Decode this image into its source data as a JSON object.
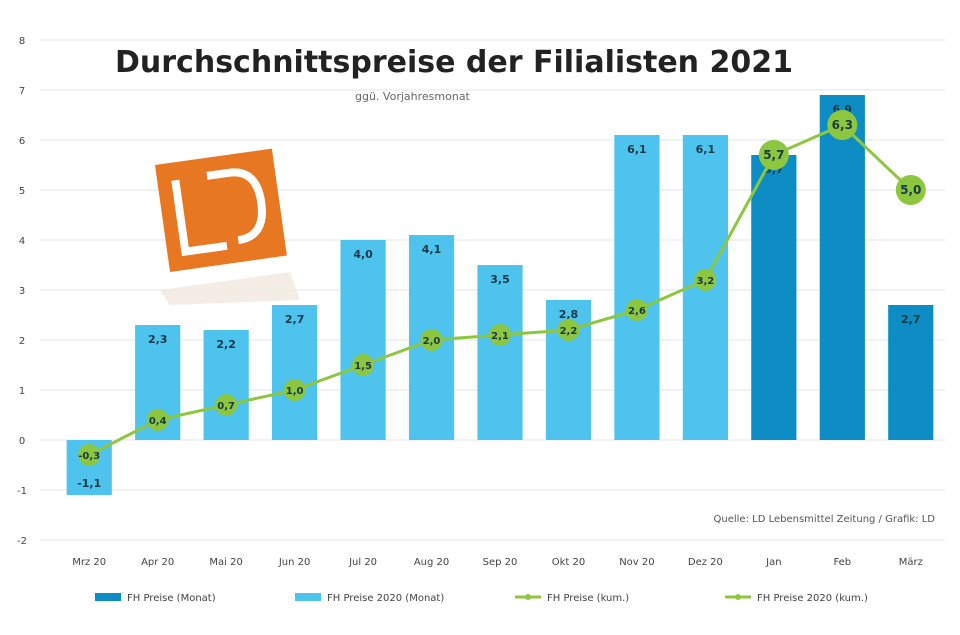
{
  "chart_data": {
    "type": "bar",
    "title": "Durchschnittspreise der Filialisten 2021",
    "subtitle": "ggü. Vorjahresmonat",
    "source": "Quelle: LD Lebensmittel Zeitung / Grafik: LD",
    "categories": [
      "Mrz 20",
      "Apr 20",
      "Mai 20",
      "Jun 20",
      "Jul 20",
      "Aug 20",
      "Sep 20",
      "Okt 20",
      "Nov 20",
      "Dez 20",
      "Jan",
      "Feb",
      "März"
    ],
    "ylim": [
      -2,
      8
    ],
    "yticks": [
      -2,
      -1,
      0,
      1,
      2,
      3,
      4,
      5,
      6,
      7,
      8
    ],
    "grid": true,
    "legend_position": "bottom",
    "series": [
      {
        "name": "FH Preise (Monat)",
        "type": "bar",
        "color": "#0e8cc4",
        "values": [
          null,
          null,
          null,
          null,
          null,
          null,
          null,
          null,
          null,
          null,
          5.7,
          6.9,
          2.7
        ],
        "labels": [
          "",
          "",
          "",
          "",
          "",
          "",
          "",
          "",
          "",
          "",
          "5,7",
          "6,9",
          "2,7"
        ]
      },
      {
        "name": "FH Preise 2020 (Monat)",
        "type": "bar",
        "color": "#4dc3ee",
        "values": [
          -1.1,
          2.3,
          2.2,
          2.7,
          4.0,
          4.1,
          3.5,
          2.8,
          6.1,
          6.1,
          null,
          null,
          null
        ],
        "labels": [
          "-1,1",
          "2,3",
          "2,2",
          "2,7",
          "4,0",
          "4,1",
          "3,5",
          "2,8",
          "6,1",
          "6,1",
          "",
          "",
          ""
        ]
      },
      {
        "name": "FH Preise (kum.)",
        "type": "line",
        "color": "#8dc63f",
        "values": [
          null,
          null,
          null,
          null,
          null,
          null,
          null,
          null,
          null,
          null,
          5.7,
          6.3,
          5.0
        ],
        "labels": [
          "",
          "",
          "",
          "",
          "",
          "",
          "",
          "",
          "",
          "",
          "5,7",
          "6,3",
          "5,0"
        ]
      },
      {
        "name": "FH Preise 2020 (kum.)",
        "type": "line",
        "color": "#8dc63f",
        "values": [
          -0.3,
          0.4,
          0.7,
          1.0,
          1.5,
          2.0,
          2.1,
          2.2,
          2.6,
          3.2,
          null,
          null,
          null
        ],
        "labels": [
          "-0,3",
          "0,4",
          "0,7",
          "1,0",
          "1,5",
          "2,0",
          "2,1",
          "2,2",
          "2,6",
          "3,2",
          "",
          "",
          ""
        ]
      }
    ]
  },
  "colors": {
    "logo": "#e87722",
    "grid": "#e6e6e6"
  }
}
